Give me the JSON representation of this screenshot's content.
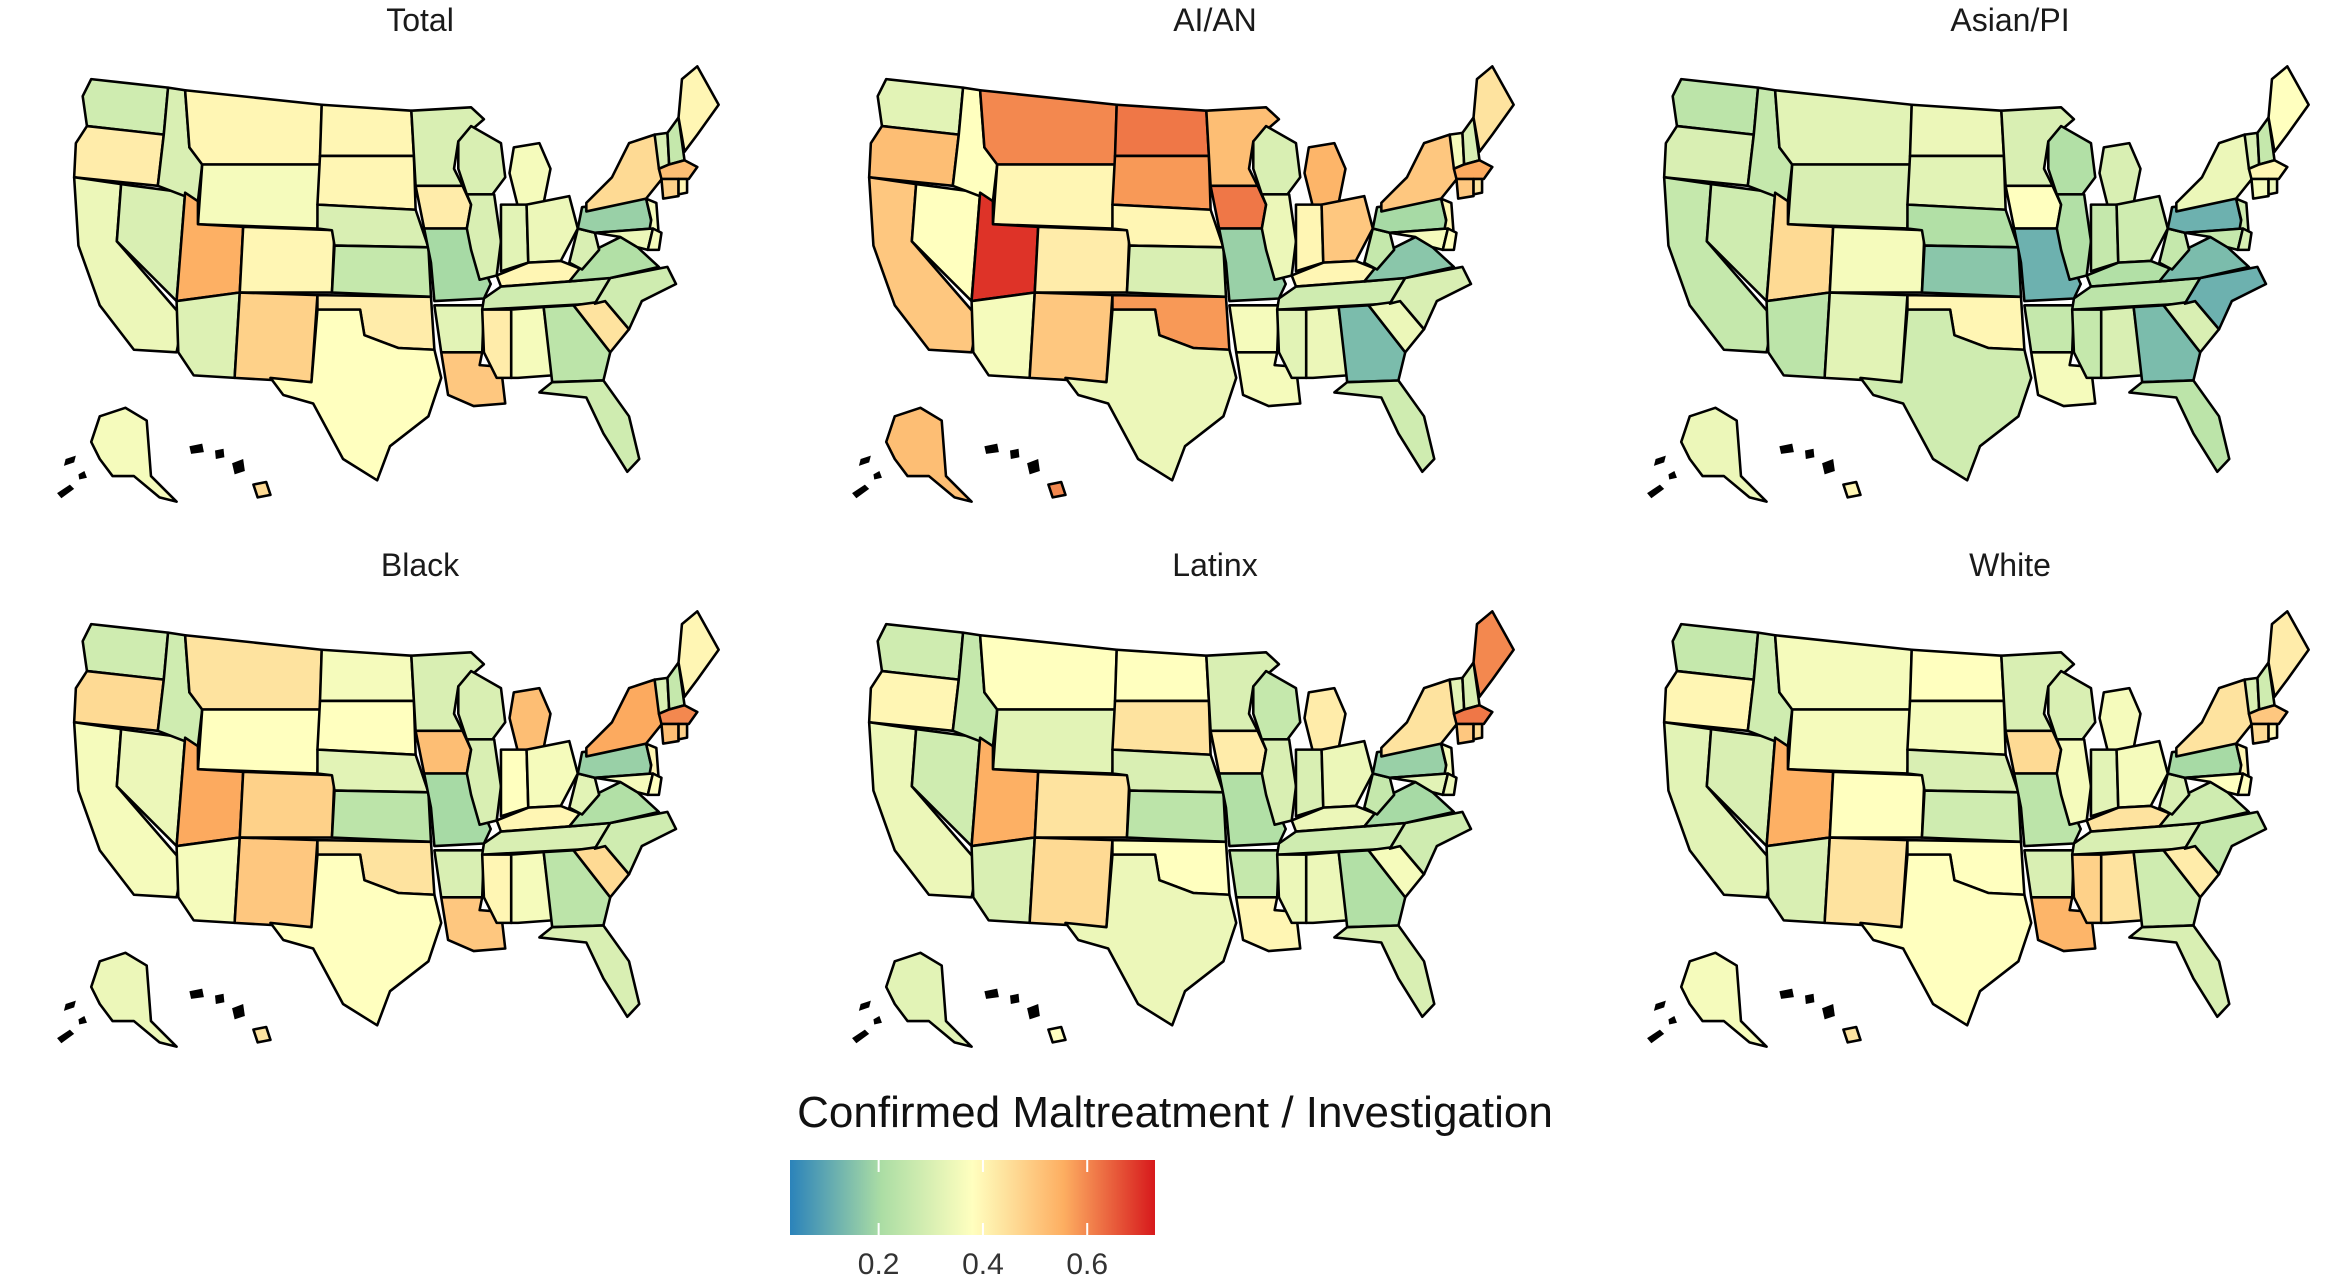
{
  "panels": [
    {
      "title": "Total",
      "values": {
        "WA": 0.28,
        "OR": 0.42,
        "CA": 0.34,
        "NV": 0.3,
        "ID": 0.3,
        "MT": 0.4,
        "WY": 0.36,
        "UT": 0.55,
        "AZ": 0.31,
        "CO": 0.4,
        "NM": 0.48,
        "ND": 0.4,
        "SD": 0.4,
        "NE": 0.3,
        "KS": 0.26,
        "OK": 0.42,
        "TX": 0.38,
        "MN": 0.3,
        "IA": 0.42,
        "MO": 0.2,
        "AR": 0.32,
        "LA": 0.5,
        "WI": 0.3,
        "IL": 0.3,
        "MI": 0.36,
        "IN": 0.32,
        "OH": 0.34,
        "KY": 0.4,
        "TN": 0.28,
        "MS": 0.42,
        "AL": 0.36,
        "GA": 0.24,
        "FL": 0.28,
        "SC": 0.44,
        "NC": 0.28,
        "VA": 0.22,
        "WV": 0.3,
        "PA": 0.18,
        "NY": 0.46,
        "VT": 0.3,
        "NH": 0.26,
        "ME": 0.4,
        "MA": 0.52,
        "CT": 0.48,
        "NJ": 0.36,
        "MD": 0.34,
        "DE": 0.36,
        "RI": 0.4,
        "AK": 0.36,
        "HI": 0.46
      }
    },
    {
      "title": "AI/AN",
      "values": {
        "WA": 0.32,
        "OR": 0.52,
        "CA": 0.5,
        "NV": 0.38,
        "ID": 0.38,
        "MT": 0.6,
        "WY": 0.4,
        "UT": 0.7,
        "AZ": 0.36,
        "CO": 0.42,
        "NM": 0.5,
        "ND": 0.62,
        "SD": 0.58,
        "NE": 0.4,
        "KS": 0.3,
        "OK": 0.58,
        "TX": 0.34,
        "MN": 0.52,
        "IA": 0.62,
        "MO": 0.18,
        "AR": 0.36,
        "LA": 0.36,
        "WI": 0.3,
        "IL": 0.34,
        "MI": 0.54,
        "IN": 0.4,
        "OH": 0.5,
        "KY": 0.4,
        "TN": 0.28,
        "MS": 0.32,
        "AL": 0.34,
        "GA": 0.14,
        "FL": 0.28,
        "SC": 0.34,
        "NC": 0.3,
        "VA": 0.16,
        "WV": 0.26,
        "PA": 0.2,
        "NY": 0.5,
        "VT": 0.36,
        "NH": 0.3,
        "ME": 0.44,
        "MA": 0.56,
        "CT": 0.5,
        "NJ": 0.4,
        "MD": 0.36,
        "DE": 0.38,
        "RI": 0.44,
        "AK": 0.52,
        "HI": 0.6
      }
    },
    {
      "title": "Asian/PI",
      "values": {
        "WA": 0.24,
        "OR": 0.3,
        "CA": 0.26,
        "NV": 0.28,
        "ID": 0.26,
        "MT": 0.32,
        "WY": 0.3,
        "UT": 0.46,
        "AZ": 0.24,
        "CO": 0.36,
        "NM": 0.32,
        "ND": 0.34,
        "SD": 0.32,
        "NE": 0.22,
        "KS": 0.16,
        "OK": 0.4,
        "TX": 0.28,
        "MN": 0.3,
        "IA": 0.38,
        "MO": 0.12,
        "AR": 0.26,
        "LA": 0.36,
        "WI": 0.22,
        "IL": 0.22,
        "MI": 0.3,
        "IN": 0.26,
        "OH": 0.28,
        "KY": 0.22,
        "TN": 0.24,
        "MS": 0.26,
        "AL": 0.3,
        "GA": 0.14,
        "FL": 0.24,
        "SC": 0.3,
        "NC": 0.12,
        "VA": 0.14,
        "WV": 0.26,
        "PA": 0.12,
        "NY": 0.34,
        "VT": 0.3,
        "NH": 0.26,
        "ME": 0.38,
        "MA": 0.4,
        "CT": 0.36,
        "NJ": 0.28,
        "MD": 0.26,
        "DE": 0.3,
        "RI": 0.34,
        "AK": 0.34,
        "HI": 0.4
      }
    },
    {
      "title": "Black",
      "values": {
        "WA": 0.28,
        "OR": 0.46,
        "CA": 0.36,
        "NV": 0.34,
        "ID": 0.28,
        "MT": 0.44,
        "WY": 0.38,
        "UT": 0.56,
        "AZ": 0.36,
        "CO": 0.48,
        "NM": 0.5,
        "ND": 0.36,
        "SD": 0.38,
        "NE": 0.32,
        "KS": 0.24,
        "OK": 0.44,
        "TX": 0.38,
        "MN": 0.3,
        "IA": 0.52,
        "MO": 0.2,
        "AR": 0.3,
        "LA": 0.5,
        "WI": 0.3,
        "IL": 0.3,
        "MI": 0.52,
        "IN": 0.38,
        "OH": 0.36,
        "KY": 0.4,
        "TN": 0.3,
        "MS": 0.4,
        "AL": 0.36,
        "GA": 0.24,
        "FL": 0.3,
        "SC": 0.46,
        "NC": 0.28,
        "VA": 0.22,
        "WV": 0.32,
        "PA": 0.18,
        "NY": 0.56,
        "VT": 0.3,
        "NH": 0.26,
        "ME": 0.4,
        "MA": 0.6,
        "CT": 0.52,
        "NJ": 0.4,
        "MD": 0.36,
        "DE": 0.38,
        "RI": 0.48,
        "AK": 0.34,
        "HI": 0.44
      }
    },
    {
      "title": "Latinx",
      "values": {
        "WA": 0.28,
        "OR": 0.4,
        "CA": 0.34,
        "NV": 0.28,
        "ID": 0.26,
        "MT": 0.38,
        "WY": 0.32,
        "UT": 0.55,
        "AZ": 0.3,
        "CO": 0.44,
        "NM": 0.46,
        "ND": 0.38,
        "SD": 0.44,
        "NE": 0.3,
        "KS": 0.24,
        "OK": 0.38,
        "TX": 0.34,
        "MN": 0.3,
        "IA": 0.42,
        "MO": 0.22,
        "AR": 0.26,
        "LA": 0.4,
        "WI": 0.26,
        "IL": 0.3,
        "MI": 0.42,
        "IN": 0.3,
        "OH": 0.34,
        "KY": 0.34,
        "TN": 0.28,
        "MS": 0.34,
        "AL": 0.34,
        "GA": 0.22,
        "FL": 0.3,
        "SC": 0.36,
        "NC": 0.28,
        "VA": 0.2,
        "WV": 0.26,
        "PA": 0.18,
        "NY": 0.44,
        "VT": 0.32,
        "NH": 0.3,
        "ME": 0.6,
        "MA": 0.62,
        "CT": 0.5,
        "NJ": 0.36,
        "MD": 0.32,
        "DE": 0.34,
        "RI": 0.46,
        "AK": 0.32,
        "HI": 0.38
      }
    },
    {
      "title": "White",
      "values": {
        "WA": 0.26,
        "OR": 0.4,
        "CA": 0.32,
        "NV": 0.3,
        "ID": 0.28,
        "MT": 0.36,
        "WY": 0.36,
        "UT": 0.55,
        "AZ": 0.3,
        "CO": 0.38,
        "NM": 0.44,
        "ND": 0.38,
        "SD": 0.36,
        "NE": 0.3,
        "KS": 0.28,
        "OK": 0.38,
        "TX": 0.38,
        "MN": 0.3,
        "IA": 0.46,
        "MO": 0.24,
        "AR": 0.3,
        "LA": 0.54,
        "WI": 0.3,
        "IL": 0.36,
        "MI": 0.36,
        "IN": 0.32,
        "OH": 0.36,
        "KY": 0.44,
        "TN": 0.3,
        "MS": 0.48,
        "AL": 0.44,
        "GA": 0.28,
        "FL": 0.3,
        "SC": 0.42,
        "NC": 0.26,
        "VA": 0.28,
        "WV": 0.3,
        "PA": 0.2,
        "NY": 0.44,
        "VT": 0.3,
        "NH": 0.28,
        "ME": 0.42,
        "MA": 0.5,
        "CT": 0.46,
        "NJ": 0.4,
        "MD": 0.38,
        "DE": 0.38,
        "RI": 0.4,
        "AK": 0.36,
        "HI": 0.44
      }
    }
  ],
  "legend": {
    "title": "Confirmed Maltreatment / Investigation",
    "min": 0.03,
    "max": 0.73,
    "ticks": [
      0.2,
      0.4,
      0.6
    ],
    "tick_labels": [
      "0.2",
      "0.4",
      "0.6"
    ],
    "palette": [
      "#2b83ba",
      "#abdda4",
      "#ffffbf",
      "#fdae61",
      "#d7191c"
    ]
  }
}
